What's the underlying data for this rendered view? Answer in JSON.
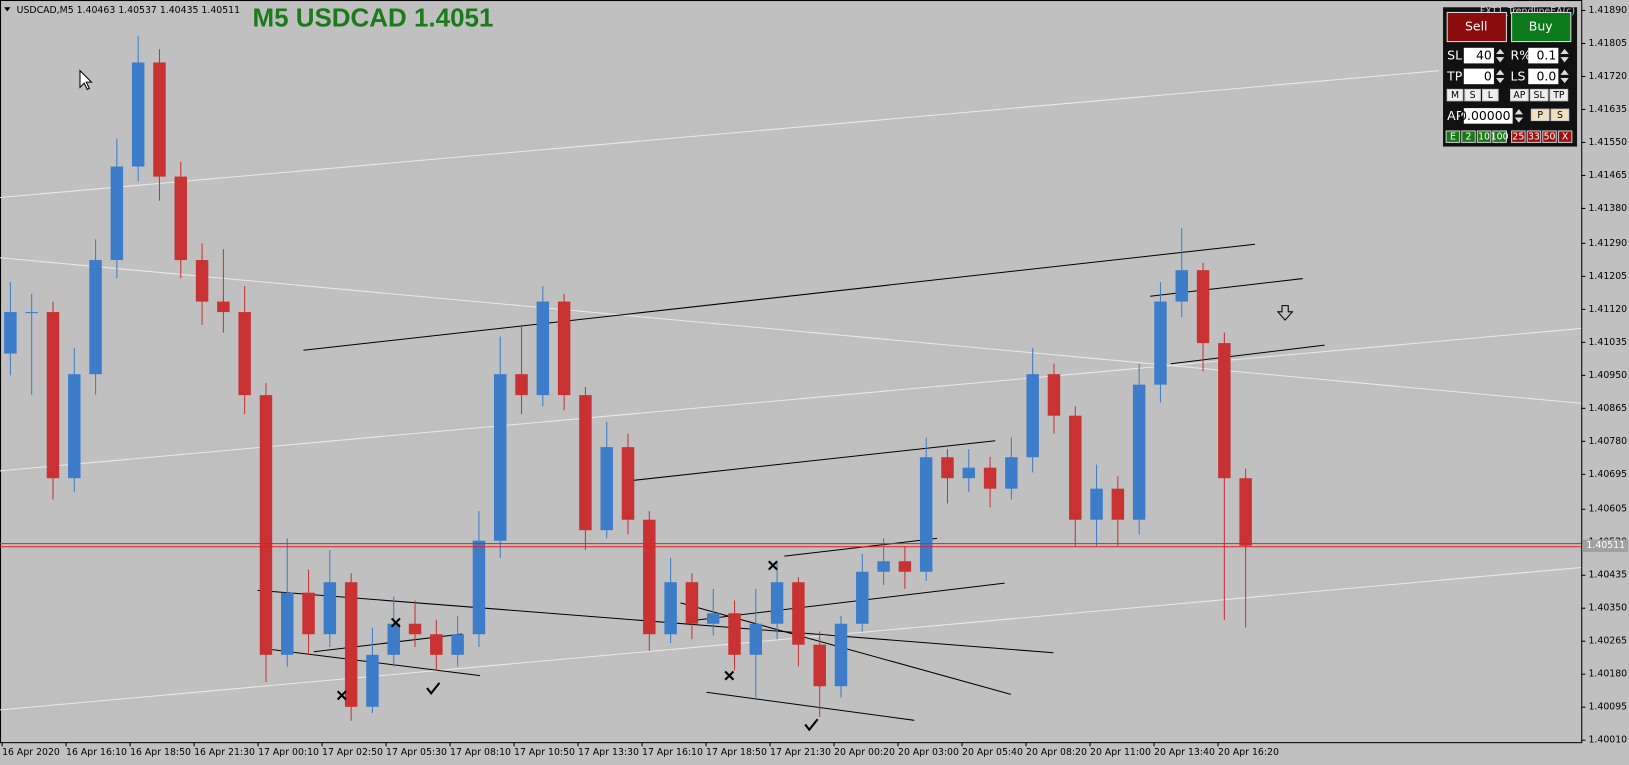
{
  "chart_data": {
    "type": "candlestick",
    "symbol_info": "USDCAD,M5  1.40463 1.40537 1.40435 1.40511",
    "title": "M5 USDCAD 1.4051",
    "current_price": 1.40511,
    "ylim": [
      1.40005,
      1.41917
    ],
    "yticks": [
      {
        "value": 1.4189,
        "label": "1.41890"
      },
      1.41805,
      {
        "value": 1.4172,
        "label": "1.41720"
      },
      1.41635,
      {
        "value": 1.4155,
        "label": "1.41550"
      },
      1.41465,
      {
        "value": 1.4138,
        "label": "1.41380"
      },
      {
        "value": 1.4129,
        "label": "1.41290"
      },
      1.41205,
      {
        "value": 1.4112,
        "label": "1.41120"
      },
      1.41035,
      {
        "value": 1.4095,
        "label": "1.40950"
      },
      1.40865,
      {
        "value": 1.4078,
        "label": "1.40780"
      },
      1.40695,
      1.40605,
      {
        "value": 1.4052,
        "label": "1.40520"
      },
      1.40435,
      {
        "value": 1.4035,
        "label": "1.40350"
      },
      1.40265,
      {
        "value": 1.4018,
        "label": "1.40180"
      },
      1.40095,
      {
        "value": 1.4001,
        "label": "1.40010"
      }
    ],
    "x_labels": [
      "16 Apr 2020",
      "16 Apr 16:10",
      "16 Apr 18:50",
      "16 Apr 21:30",
      "17 Apr 00:10",
      "17 Apr 02:50",
      "17 Apr 05:30",
      "17 Apr 08:10",
      "17 Apr 10:50",
      "17 Apr 13:30",
      "17 Apr 16:10",
      "17 Apr 18:50",
      "17 Apr 21:30",
      "20 Apr 00:20",
      "20 Apr 03:00",
      "20 Apr 05:40",
      "20 Apr 08:20",
      "20 Apr 11:00",
      "20 Apr 13:40",
      "20 Apr 16:20"
    ],
    "up_color": "#3c7cc8",
    "down_color": "#c83232",
    "open": [
      1.41006,
      1.41113,
      1.41113,
      1.40685,
      1.40953,
      1.41247,
      1.41488,
      1.41756,
      1.41462,
      1.41247,
      1.4114,
      1.41113,
      1.40899,
      1.4023,
      1.4039,
      1.40283,
      1.40417,
      1.40096,
      1.4023,
      1.4031,
      1.40283,
      1.4023,
      1.40283,
      1.40524,
      1.40953,
      1.40899,
      1.4114,
      1.40899,
      1.40551,
      1.40765,
      1.40578,
      1.40283,
      1.40417,
      1.4031,
      1.40337,
      1.4023,
      1.4031,
      1.40417,
      1.40256,
      1.40149,
      1.4031,
      1.40444,
      1.40471,
      1.40444,
      1.40739,
      1.40685,
      1.40712,
      1.40658,
      1.40739,
      1.40953,
      1.40846,
      1.40578,
      1.40658,
      1.40578,
      1.40926,
      1.4114,
      1.41221,
      1.41033,
      1.40685
    ],
    "high": [
      1.4119,
      1.4116,
      1.4114,
      1.4102,
      1.413,
      1.4156,
      1.41825,
      1.4179,
      1.415,
      1.4129,
      1.41275,
      1.4118,
      1.4093,
      1.4053,
      1.4045,
      1.405,
      1.4044,
      1.403,
      1.4038,
      1.4037,
      1.4032,
      1.4033,
      1.406,
      1.4105,
      1.4108,
      1.4118,
      1.4116,
      1.4092,
      1.4083,
      1.408,
      1.406,
      1.4048,
      1.4044,
      1.404,
      1.4037,
      1.404,
      1.4047,
      1.4043,
      1.4029,
      1.4033,
      1.4049,
      1.4053,
      1.4051,
      1.4079,
      1.4076,
      1.4076,
      1.4074,
      1.4079,
      1.4102,
      1.4098,
      1.4087,
      1.4072,
      1.4069,
      1.4098,
      1.4119,
      1.4133,
      1.4124,
      1.4106,
      1.4071
    ],
    "low": [
      1.4095,
      1.409,
      1.4063,
      1.4065,
      1.409,
      1.412,
      1.4145,
      1.414,
      1.412,
      1.4108,
      1.4106,
      1.4085,
      1.4016,
      1.402,
      1.4023,
      1.4025,
      1.4006,
      1.4008,
      1.402,
      1.4025,
      1.4019,
      1.402,
      1.4025,
      1.4048,
      1.4085,
      1.4087,
      1.4086,
      1.405,
      1.4053,
      1.4054,
      1.4024,
      1.4026,
      1.4027,
      1.4028,
      1.4019,
      1.4012,
      1.4027,
      1.402,
      1.4007,
      1.4012,
      1.4029,
      1.4041,
      1.404,
      1.4042,
      1.4062,
      1.4065,
      1.4061,
      1.4063,
      1.407,
      1.408,
      1.4051,
      1.4051,
      1.4051,
      1.4054,
      1.4088,
      1.411,
      1.4096,
      1.4032,
      1.403
    ],
    "close": [
      1.41113,
      1.41113,
      1.40685,
      1.40953,
      1.41247,
      1.41488,
      1.41756,
      1.41462,
      1.41247,
      1.4114,
      1.41113,
      1.40899,
      1.4023,
      1.4039,
      1.40283,
      1.40417,
      1.40096,
      1.4023,
      1.4031,
      1.40283,
      1.4023,
      1.40283,
      1.40524,
      1.40953,
      1.40899,
      1.4114,
      1.40899,
      1.40551,
      1.40765,
      1.40578,
      1.40283,
      1.40417,
      1.4031,
      1.40337,
      1.4023,
      1.4031,
      1.40417,
      1.40256,
      1.40149,
      1.4031,
      1.40444,
      1.40471,
      1.40444,
      1.40739,
      1.40685,
      1.40712,
      1.40658,
      1.40739,
      1.40953,
      1.40846,
      1.40578,
      1.40658,
      1.40578,
      1.40926,
      1.4114,
      1.41221,
      1.41033,
      1.40685,
      1.40511
    ]
  },
  "panel": {
    "ea_name": "FXT1_TrendlineEA(c)",
    "sell": "Sell",
    "buy": "Buy",
    "sl_label": "SL",
    "sl_value": "40",
    "r_label": "R%",
    "r_value": "0.1",
    "tp_label": "TP",
    "tp_value": "0",
    "ls_label": "LS",
    "ls_value": "0.0",
    "mode_buttons": [
      "M",
      "S",
      "L"
    ],
    "ap_buttons": [
      "AP",
      "SL",
      "TP"
    ],
    "ap_label": "AP",
    "ap_value": "0.00000",
    "ps_buttons": [
      "P",
      "S"
    ],
    "green_buttons": [
      "E",
      "2",
      "10",
      "100"
    ],
    "red_buttons": [
      "25",
      "33",
      "50",
      "X"
    ]
  }
}
